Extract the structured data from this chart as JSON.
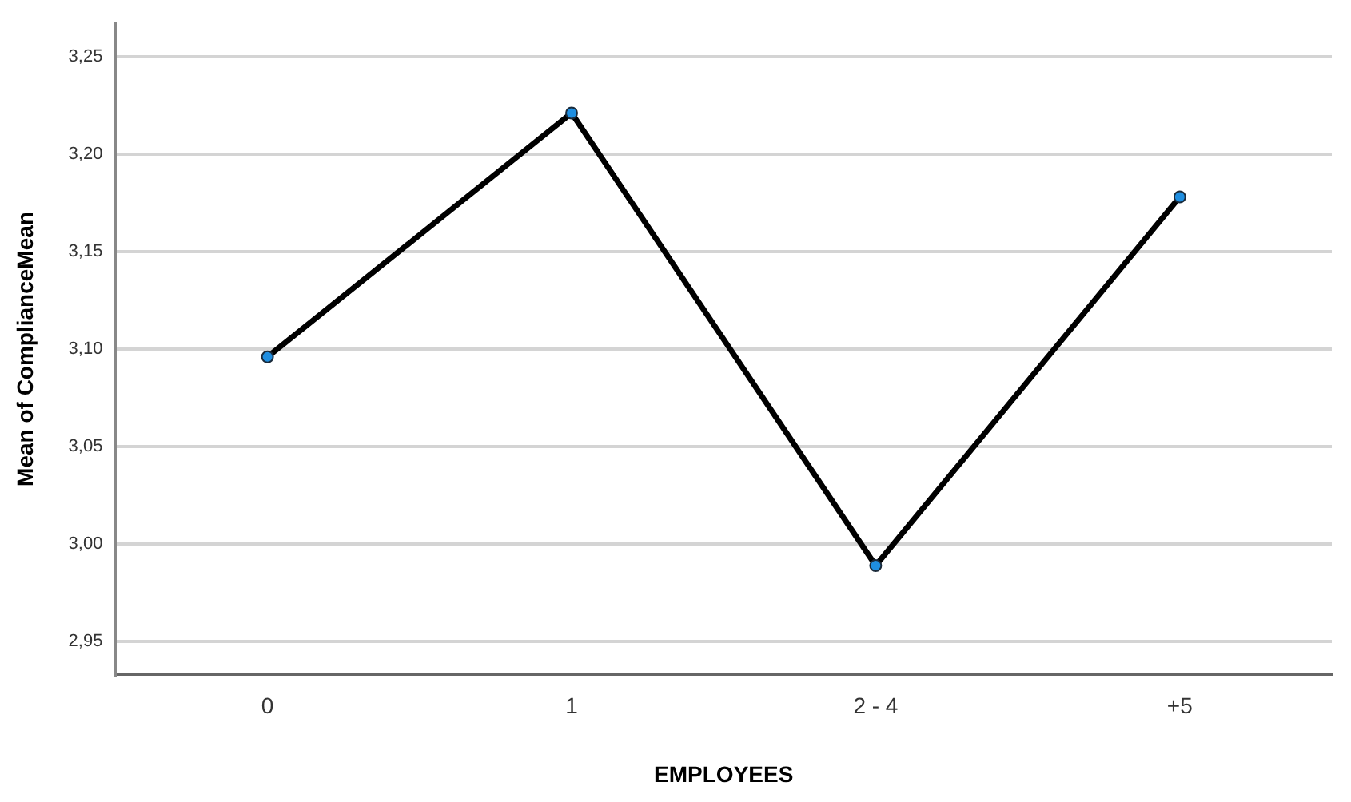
{
  "chart_data": {
    "type": "line",
    "xlabel": "EMPLOYEES",
    "ylabel": "Mean of ComplianceMean",
    "categories": [
      "0",
      "1",
      "2 - 4",
      "+5"
    ],
    "series": [
      {
        "color": "#000000",
        "values": [
          3.096,
          3.221,
          2.989,
          3.178
        ]
      }
    ],
    "ylim": [
      2.933,
      3.267
    ],
    "yticks": [
      {
        "value": 2.95,
        "label": "2,95"
      },
      {
        "value": 3.0,
        "label": "3,00"
      },
      {
        "value": 3.05,
        "label": "3,05"
      },
      {
        "value": 3.1,
        "label": "3,10"
      },
      {
        "value": 3.15,
        "label": "3,15"
      },
      {
        "value": 3.2,
        "label": "3,20"
      },
      {
        "value": 3.25,
        "label": "3,25"
      }
    ],
    "grid": "y",
    "marker": "circle",
    "line_style": "solid",
    "legend": false
  }
}
